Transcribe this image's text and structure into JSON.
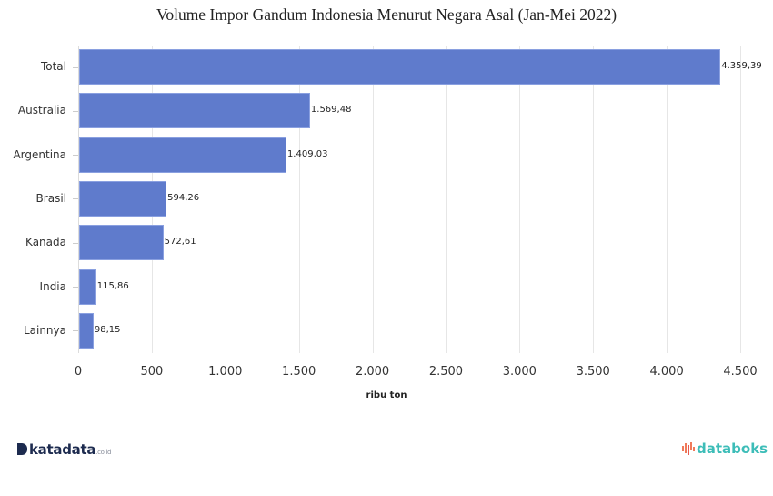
{
  "title": "Volume Impor Gandum Indonesia Menurut Negara Asal (Jan-Mei 2022)",
  "chart_data": {
    "type": "bar",
    "orientation": "horizontal",
    "title": "Volume Impor Gandum Indonesia Menurut Negara Asal (Jan-Mei 2022)",
    "xlabel": "ribu ton",
    "ylabel": "",
    "categories": [
      "Total",
      "Australia",
      "Argentina",
      "Brasil",
      "Kanada",
      "India",
      "Lainnya"
    ],
    "values": [
      4359.39,
      1569.48,
      1409.03,
      594.26,
      572.61,
      115.86,
      98.15
    ],
    "value_labels": [
      "4.359,39",
      "1.569,48",
      "1.409,03",
      "594,26",
      "572,61",
      "115,86",
      "98,15"
    ],
    "xlim": [
      0,
      4500
    ],
    "x_ticks": [
      0,
      500,
      1000,
      1500,
      2000,
      2500,
      3000,
      3500,
      4000,
      4500
    ],
    "x_tick_labels": [
      "0",
      "500",
      "1.000",
      "1.500",
      "2.000",
      "2.500",
      "3.000",
      "3.500",
      "4.000",
      "4.500"
    ],
    "grid": "vertical",
    "bar_color": "#5f7bcc",
    "legend": null
  },
  "footer": {
    "left_logo": {
      "main": "katadata",
      "suffix": ".co.id",
      "color": "#1d2b4f"
    },
    "right_logo": {
      "main": "databoks",
      "color": "#3dbdb8",
      "accent": "#f07a5a"
    }
  }
}
